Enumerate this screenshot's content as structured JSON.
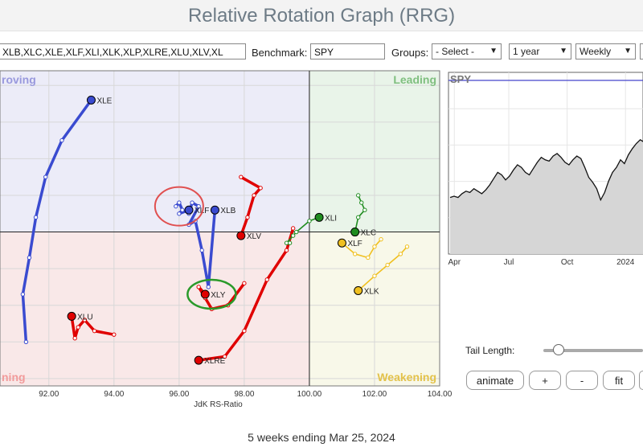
{
  "page": {
    "title": "Relative Rotation Graph (RRG)",
    "footer": "5 weeks ending Mar 25, 2024"
  },
  "toolbar": {
    "symbols_value": "XLB,XLC,XLE,XLF,XLI,XLK,XLP,XLRE,XLU,XLV,XL",
    "benchmark_label": "Benchmark:",
    "benchmark_value": "SPY",
    "groups_label": "Groups:",
    "groups_value": "- Select -",
    "period_value": "1 year",
    "frequency_value": "Weekly"
  },
  "controls": {
    "tail_length_label": "Tail Length:",
    "tail_length_level": 0.15,
    "animate_label": "animate",
    "plus_label": "+",
    "minus_label": "-",
    "fit_label": "fit"
  },
  "colors": {
    "lagging_bg": "#f9e8e8",
    "improving_bg": "#ececf8",
    "leading_bg": "#e9f4e9",
    "weakening_bg": "#f8f8e9",
    "leading_text": "#7fbf7f",
    "improving_text": "#9999dd",
    "lagging_text": "#f29a9a",
    "weakening_text": "#e3c24a",
    "blue": "#3a4bd0",
    "red": "#e00000",
    "green": "#1f8c1f",
    "yellow": "#f0c020",
    "highlight_red_circle": "#e05050",
    "highlight_green_circle": "#2a9a2a",
    "benchmark_line": "#4444cc"
  },
  "rrg": {
    "xlabel": "JdK RS-Ratio",
    "xlim": [
      90.5,
      104.0
    ],
    "ylim": [
      95.8,
      104.4
    ],
    "x_ticks": [
      92,
      94,
      96,
      98,
      100,
      102,
      104
    ],
    "x_tick_labels": [
      "92.00",
      "94.00",
      "96.00",
      "98.00",
      "100.00",
      "102.00",
      "104.00"
    ],
    "quadrant_labels": {
      "improving": "roving",
      "leading": "Leading",
      "lagging": "ning",
      "weakening": "Weakening"
    },
    "series": [
      {
        "name": "XLE",
        "color": "blue",
        "tail": [
          [
            91.3,
            97.0
          ],
          [
            91.2,
            98.3
          ],
          [
            91.4,
            99.3
          ],
          [
            91.6,
            100.4
          ],
          [
            91.9,
            101.5
          ],
          [
            92.4,
            102.5
          ],
          [
            93.3,
            103.6
          ]
        ]
      },
      {
        "name": "XLB",
        "color": "blue",
        "tail": [
          [
            96.3,
            100.5
          ],
          [
            96.4,
            100.8
          ],
          [
            96.6,
            100.7
          ],
          [
            96.3,
            100.2
          ],
          [
            96.5,
            100.3
          ],
          [
            96.7,
            99.5
          ],
          [
            96.9,
            98.5
          ],
          [
            97.1,
            100.6
          ]
        ]
      },
      {
        "name": "XLF",
        "color": "blue",
        "tail": [
          [
            95.9,
            100.7
          ],
          [
            96.0,
            100.8
          ],
          [
            96.1,
            100.6
          ],
          [
            96.0,
            100.5
          ],
          [
            96.3,
            100.6
          ]
        ]
      },
      {
        "name": "XLY",
        "color": "red",
        "tail": [
          [
            98.0,
            98.6
          ],
          [
            97.5,
            98.0
          ],
          [
            97.0,
            97.9
          ],
          [
            96.8,
            98.2
          ],
          [
            96.6,
            98.5
          ],
          [
            96.8,
            98.3
          ]
        ]
      },
      {
        "name": "XLV",
        "color": "red",
        "tail": [
          [
            97.9,
            101.5
          ],
          [
            98.5,
            101.2
          ],
          [
            98.3,
            101.0
          ],
          [
            98.1,
            100.4
          ],
          [
            97.9,
            99.9
          ]
        ]
      },
      {
        "name": "XLU",
        "color": "red",
        "tail": [
          [
            94.0,
            97.2
          ],
          [
            93.4,
            97.3
          ],
          [
            93.1,
            97.6
          ],
          [
            92.9,
            97.4
          ],
          [
            92.8,
            97.1
          ],
          [
            92.7,
            97.7
          ]
        ]
      },
      {
        "name": "XLRE",
        "color": "red",
        "tail": [
          [
            99.5,
            100.1
          ],
          [
            99.3,
            99.5
          ],
          [
            98.7,
            98.7
          ],
          [
            98.0,
            97.3
          ],
          [
            97.4,
            96.6
          ],
          [
            96.6,
            96.5
          ]
        ]
      },
      {
        "name": "XLI",
        "color": "green",
        "tail": [
          [
            99.4,
            99.7
          ],
          [
            99.3,
            99.7
          ],
          [
            99.5,
            99.9
          ],
          [
            99.6,
            100.0
          ],
          [
            100.0,
            100.3
          ],
          [
            100.3,
            100.4
          ]
        ]
      },
      {
        "name": "XLC",
        "color": "green",
        "tail": [
          [
            101.5,
            101.0
          ],
          [
            101.6,
            100.8
          ],
          [
            101.7,
            100.6
          ],
          [
            101.5,
            100.4
          ],
          [
            101.4,
            100.0
          ]
        ]
      },
      {
        "name": "XLF",
        "color": "yellow",
        "tail": [
          [
            102.2,
            99.8
          ],
          [
            102.0,
            99.6
          ],
          [
            101.8,
            99.3
          ],
          [
            101.4,
            99.4
          ],
          [
            101.0,
            99.7
          ]
        ]
      },
      {
        "name": "XLK",
        "color": "yellow",
        "tail": [
          [
            103.0,
            99.6
          ],
          [
            102.8,
            99.4
          ],
          [
            102.4,
            99.1
          ],
          [
            102.0,
            98.8
          ],
          [
            101.5,
            98.4
          ]
        ]
      }
    ]
  },
  "benchmark_chart": {
    "label": "SPY",
    "x_tick_labels": [
      "Apr",
      "Jul",
      "Oct",
      "2024"
    ],
    "values": [
      40,
      41,
      40,
      43,
      45,
      44,
      47,
      45,
      43,
      46,
      50,
      55,
      60,
      58,
      54,
      57,
      62,
      66,
      64,
      60,
      58,
      63,
      68,
      72,
      70,
      69,
      73,
      75,
      72,
      68,
      66,
      70,
      73,
      71,
      64,
      56,
      52,
      47,
      38,
      44,
      53,
      60,
      64,
      70,
      67,
      74,
      79,
      83,
      86,
      84,
      89,
      94,
      95,
      98,
      100
    ]
  }
}
